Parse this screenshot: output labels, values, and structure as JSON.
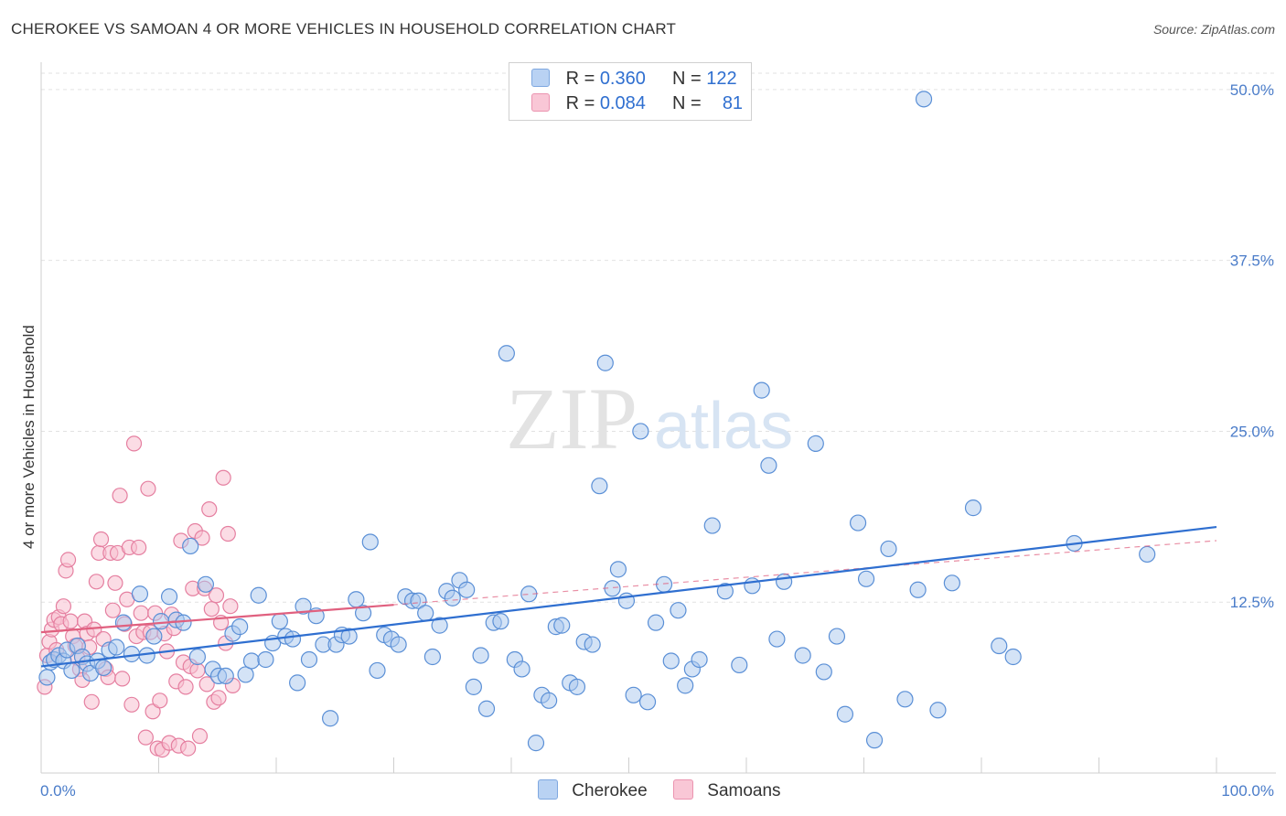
{
  "title": "CHEROKEE VS SAMOAN 4 OR MORE VEHICLES IN HOUSEHOLD CORRELATION CHART",
  "source": "Source: ZipAtlas.com",
  "watermark": {
    "zip": "ZIP",
    "atlas": "atlas"
  },
  "stats": {
    "r_label": "R =",
    "n_label": "N =",
    "cherokee": {
      "r": "0.360",
      "n": "122",
      "color": "#9dbff0"
    },
    "samoans": {
      "r": "0.084",
      "n": "81",
      "color": "#f5b0c5"
    }
  },
  "legend": {
    "cherokee": "Cherokee",
    "samoans": "Samoans"
  },
  "chart_data": {
    "type": "scatter",
    "ylabel": "4 or more Vehicles in Household",
    "xlim": [
      0,
      100
    ],
    "ylim": [
      0,
      52
    ],
    "x_tick_labels": [
      "0.0%",
      "100.0%"
    ],
    "y_ticks": [
      12.5,
      25.0,
      37.5,
      50.0
    ],
    "y_tick_labels": [
      "12.5%",
      "25.0%",
      "37.5%",
      "50.0%"
    ],
    "grid": true,
    "colors": {
      "cherokee_fill": "#a9c7ee",
      "cherokee_stroke": "#5a8fd6",
      "cherokee_line": "#2f6fd0",
      "samoans_fill": "#f7bfd0",
      "samoans_stroke": "#e57fa0",
      "samoans_line": "#e0607f"
    },
    "series": [
      {
        "name": "Cherokee",
        "trend": {
          "x": [
            0,
            100
          ],
          "y": [
            7.8,
            18.0
          ]
        },
        "points": [
          [
            0.5,
            7.0
          ],
          [
            0.8,
            8.1
          ],
          [
            1.1,
            8.3
          ],
          [
            1.5,
            8.6
          ],
          [
            1.9,
            8.2
          ],
          [
            2.2,
            9.0
          ],
          [
            2.6,
            7.5
          ],
          [
            3.1,
            9.3
          ],
          [
            3.5,
            8.5
          ],
          [
            3.9,
            8.0
          ],
          [
            4.2,
            7.3
          ],
          [
            4.8,
            8.2
          ],
          [
            5.3,
            7.7
          ],
          [
            5.8,
            9.0
          ],
          [
            6.4,
            9.2
          ],
          [
            7.0,
            11.0
          ],
          [
            7.7,
            8.7
          ],
          [
            8.4,
            13.1
          ],
          [
            9.0,
            8.6
          ],
          [
            9.6,
            10.0
          ],
          [
            10.2,
            11.1
          ],
          [
            10.9,
            12.9
          ],
          [
            11.5,
            11.2
          ],
          [
            12.1,
            11.0
          ],
          [
            12.7,
            16.6
          ],
          [
            13.3,
            8.5
          ],
          [
            14.0,
            13.8
          ],
          [
            14.6,
            7.6
          ],
          [
            15.1,
            7.1
          ],
          [
            15.7,
            7.1
          ],
          [
            16.3,
            10.2
          ],
          [
            16.9,
            10.7
          ],
          [
            17.4,
            7.2
          ],
          [
            17.9,
            8.2
          ],
          [
            18.5,
            13.0
          ],
          [
            19.1,
            8.3
          ],
          [
            19.7,
            9.5
          ],
          [
            20.3,
            11.1
          ],
          [
            20.8,
            10.0
          ],
          [
            21.4,
            9.8
          ],
          [
            21.8,
            6.6
          ],
          [
            22.3,
            12.2
          ],
          [
            22.8,
            8.3
          ],
          [
            23.4,
            11.5
          ],
          [
            24.0,
            9.4
          ],
          [
            24.6,
            4.0
          ],
          [
            25.1,
            9.4
          ],
          [
            25.6,
            10.1
          ],
          [
            26.2,
            10.0
          ],
          [
            26.8,
            12.7
          ],
          [
            27.4,
            11.7
          ],
          [
            28.0,
            16.9
          ],
          [
            28.6,
            7.5
          ],
          [
            29.2,
            10.1
          ],
          [
            29.8,
            9.8
          ],
          [
            30.4,
            9.4
          ],
          [
            31.0,
            12.9
          ],
          [
            31.6,
            12.6
          ],
          [
            32.1,
            12.6
          ],
          [
            32.7,
            11.7
          ],
          [
            33.3,
            8.5
          ],
          [
            33.9,
            10.8
          ],
          [
            34.5,
            13.3
          ],
          [
            35.0,
            12.8
          ],
          [
            35.6,
            14.1
          ],
          [
            36.2,
            13.4
          ],
          [
            36.8,
            6.3
          ],
          [
            37.4,
            8.6
          ],
          [
            37.9,
            4.7
          ],
          [
            38.5,
            11.0
          ],
          [
            39.1,
            11.1
          ],
          [
            39.6,
            30.7
          ],
          [
            40.3,
            8.3
          ],
          [
            40.9,
            7.6
          ],
          [
            41.5,
            13.1
          ],
          [
            42.1,
            2.2
          ],
          [
            42.6,
            5.7
          ],
          [
            43.2,
            5.3
          ],
          [
            43.8,
            10.7
          ],
          [
            44.3,
            10.8
          ],
          [
            45.0,
            6.6
          ],
          [
            45.6,
            6.3
          ],
          [
            46.2,
            9.6
          ],
          [
            46.9,
            9.4
          ],
          [
            47.5,
            21.0
          ],
          [
            48.0,
            30.0
          ],
          [
            48.6,
            13.5
          ],
          [
            49.1,
            14.9
          ],
          [
            49.8,
            12.6
          ],
          [
            50.4,
            5.7
          ],
          [
            51.0,
            25.0
          ],
          [
            51.6,
            5.2
          ],
          [
            52.3,
            11.0
          ],
          [
            53.0,
            13.8
          ],
          [
            53.6,
            8.2
          ],
          [
            54.2,
            11.9
          ],
          [
            54.8,
            6.4
          ],
          [
            55.4,
            7.6
          ],
          [
            56.0,
            8.3
          ],
          [
            57.1,
            18.1
          ],
          [
            58.2,
            13.3
          ],
          [
            59.4,
            7.9
          ],
          [
            60.5,
            13.7
          ],
          [
            61.3,
            28.0
          ],
          [
            61.9,
            22.5
          ],
          [
            62.6,
            9.8
          ],
          [
            63.2,
            14.0
          ],
          [
            64.8,
            8.6
          ],
          [
            65.9,
            24.1
          ],
          [
            66.6,
            7.4
          ],
          [
            67.7,
            10.0
          ],
          [
            68.4,
            4.3
          ],
          [
            69.5,
            18.3
          ],
          [
            70.2,
            14.2
          ],
          [
            70.9,
            2.4
          ],
          [
            72.1,
            16.4
          ],
          [
            73.5,
            5.4
          ],
          [
            74.6,
            13.4
          ],
          [
            75.1,
            49.3
          ],
          [
            76.3,
            4.6
          ],
          [
            77.5,
            13.9
          ],
          [
            79.3,
            19.4
          ],
          [
            81.5,
            9.3
          ],
          [
            82.7,
            8.5
          ],
          [
            87.9,
            16.8
          ],
          [
            94.1,
            16.0
          ]
        ]
      },
      {
        "name": "Samoans",
        "trend": {
          "x": [
            0,
            30
          ],
          "y": [
            10.3,
            12.3
          ],
          "extended": {
            "x": [
              0,
              100
            ],
            "y": [
              10.3,
              17.0
            ]
          }
        },
        "points": [
          [
            0.3,
            6.3
          ],
          [
            0.5,
            8.6
          ],
          [
            0.7,
            9.6
          ],
          [
            0.9,
            10.5
          ],
          [
            1.1,
            11.2
          ],
          [
            1.3,
            9.0
          ],
          [
            1.5,
            11.4
          ],
          [
            1.7,
            10.9
          ],
          [
            1.9,
            12.2
          ],
          [
            2.1,
            14.8
          ],
          [
            2.3,
            15.6
          ],
          [
            2.5,
            11.1
          ],
          [
            2.7,
            10.0
          ],
          [
            2.9,
            9.3
          ],
          [
            3.1,
            8.4
          ],
          [
            3.3,
            7.6
          ],
          [
            3.5,
            6.8
          ],
          [
            3.7,
            11.1
          ],
          [
            3.9,
            10.2
          ],
          [
            4.1,
            9.2
          ],
          [
            4.3,
            5.2
          ],
          [
            4.5,
            10.5
          ],
          [
            4.7,
            14.0
          ],
          [
            4.9,
            16.1
          ],
          [
            5.1,
            17.1
          ],
          [
            5.3,
            9.8
          ],
          [
            5.5,
            7.6
          ],
          [
            5.7,
            7.0
          ],
          [
            5.9,
            16.1
          ],
          [
            6.1,
            11.9
          ],
          [
            6.3,
            13.9
          ],
          [
            6.5,
            16.1
          ],
          [
            6.7,
            20.3
          ],
          [
            6.9,
            6.9
          ],
          [
            7.1,
            10.9
          ],
          [
            7.3,
            12.7
          ],
          [
            7.5,
            16.5
          ],
          [
            7.7,
            5.0
          ],
          [
            7.9,
            24.1
          ],
          [
            8.1,
            10.0
          ],
          [
            8.3,
            16.5
          ],
          [
            8.5,
            11.7
          ],
          [
            8.7,
            10.3
          ],
          [
            8.9,
            2.6
          ],
          [
            9.1,
            20.8
          ],
          [
            9.3,
            10.3
          ],
          [
            9.5,
            4.5
          ],
          [
            9.7,
            11.7
          ],
          [
            9.9,
            1.8
          ],
          [
            10.1,
            5.3
          ],
          [
            10.3,
            1.7
          ],
          [
            10.5,
            10.2
          ],
          [
            10.7,
            8.9
          ],
          [
            10.9,
            2.2
          ],
          [
            11.1,
            11.6
          ],
          [
            11.3,
            10.6
          ],
          [
            11.5,
            6.7
          ],
          [
            11.7,
            2.0
          ],
          [
            11.9,
            17.0
          ],
          [
            12.1,
            8.1
          ],
          [
            12.3,
            6.3
          ],
          [
            12.5,
            1.8
          ],
          [
            12.7,
            7.8
          ],
          [
            12.9,
            13.5
          ],
          [
            13.1,
            17.7
          ],
          [
            13.3,
            7.5
          ],
          [
            13.5,
            2.7
          ],
          [
            13.7,
            17.2
          ],
          [
            13.9,
            13.5
          ],
          [
            14.1,
            6.5
          ],
          [
            14.3,
            19.3
          ],
          [
            14.5,
            12.0
          ],
          [
            14.7,
            5.2
          ],
          [
            14.9,
            13.0
          ],
          [
            15.1,
            5.5
          ],
          [
            15.3,
            11.0
          ],
          [
            15.5,
            21.6
          ],
          [
            15.7,
            9.5
          ],
          [
            15.9,
            17.5
          ],
          [
            16.1,
            12.2
          ],
          [
            16.3,
            6.4
          ]
        ]
      }
    ]
  }
}
